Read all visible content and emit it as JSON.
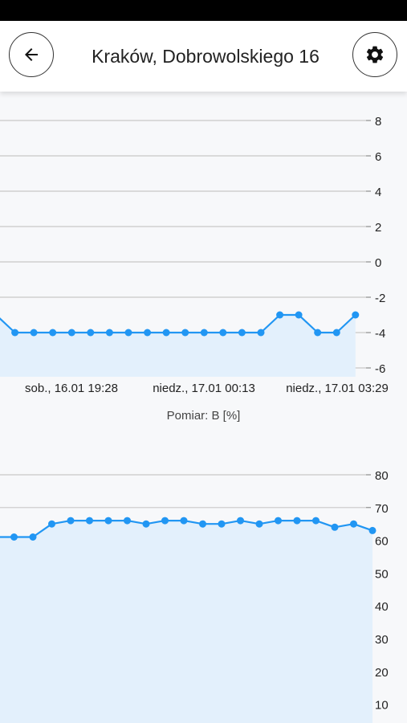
{
  "header": {
    "title": "Kraków, Dobrowolskiego 16",
    "back_icon": "arrow-left-icon",
    "settings_icon": "gear-icon"
  },
  "colors": {
    "line": "#2196f3",
    "fill": "#e3f0fc",
    "grid": "#c8c8c8"
  },
  "chart_data": [
    {
      "type": "line",
      "title": "",
      "x_tick_labels": [
        "sob., 16.01 19:28",
        "niedz., 17.01 00:13",
        "niedz., 17.01 03:29"
      ],
      "y_ticks": [
        8,
        6,
        4,
        2,
        0,
        -2,
        -4,
        -6
      ],
      "ylim": [
        -6,
        8
      ],
      "y_axis_side": "right",
      "grid": true,
      "values": [
        -3,
        -4,
        -4,
        -4,
        -4,
        -4,
        -4,
        -4,
        -4,
        -4,
        -4,
        -4,
        -4,
        -4,
        -4,
        -3,
        -3,
        -4,
        -4,
        -3
      ]
    },
    {
      "type": "line",
      "title": "Pomiar: B [%]",
      "y_ticks": [
        80,
        70,
        60,
        50,
        40,
        30,
        20,
        10
      ],
      "ylim": [
        10,
        80
      ],
      "y_axis_side": "right",
      "grid": true,
      "values": [
        61,
        61,
        61,
        65,
        66,
        66,
        66,
        66,
        65,
        66,
        66,
        65,
        65,
        66,
        65,
        66,
        66,
        66,
        64,
        65,
        63
      ]
    }
  ]
}
